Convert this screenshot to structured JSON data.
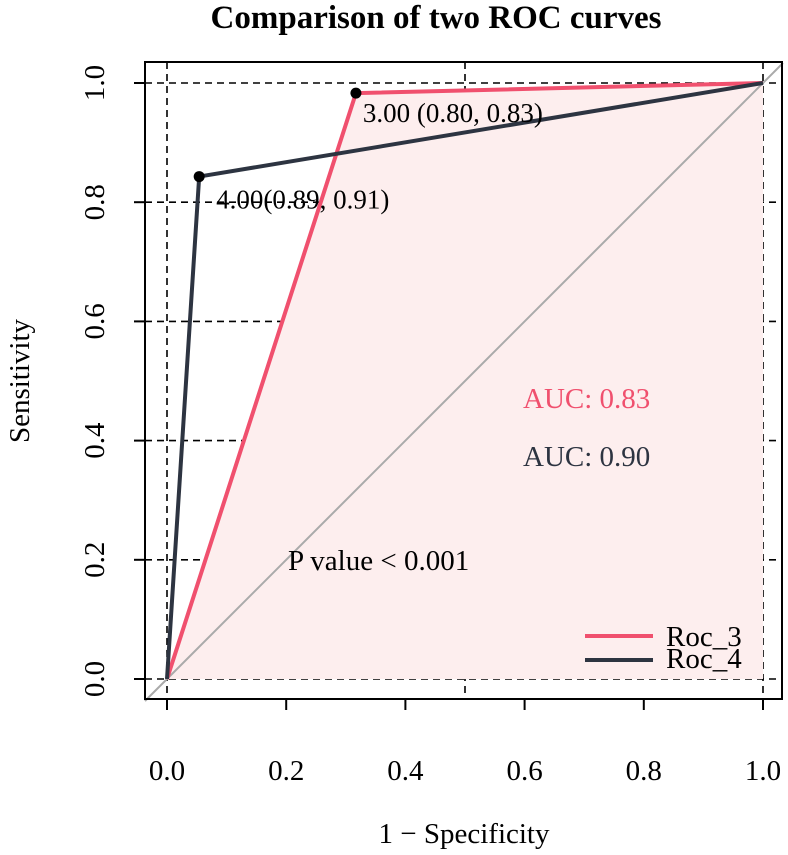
{
  "chart_data": {
    "type": "line",
    "title": "Comparison of two ROC curves",
    "xlabel": "1 − Specificity",
    "ylabel": "Sensitivity",
    "xlim": [
      0,
      1
    ],
    "ylim": [
      0,
      1
    ],
    "x_ticks": [
      "0.0",
      "0.2",
      "0.4",
      "0.6",
      "0.8",
      "1.0"
    ],
    "y_ticks": [
      "0.0",
      "0.2",
      "0.4",
      "0.6",
      "0.8",
      "1.0"
    ],
    "x_tick_values": [
      0,
      0.2,
      0.4,
      0.6,
      0.8,
      1.0
    ],
    "y_tick_values": [
      0,
      0.2,
      0.4,
      0.6,
      0.8,
      1.0
    ],
    "grid": true,
    "series": [
      {
        "name": "Roc_3",
        "color": "#f0506e",
        "fill": "#fdeeee",
        "x": [
          0,
          0.317,
          1.0
        ],
        "y": [
          0,
          0.983,
          1.0
        ],
        "threshold": {
          "x": 0.317,
          "y": 0.983,
          "label": "3.00 (0.80, 0.83)"
        },
        "auc_label": "AUC: 0.83"
      },
      {
        "name": "Roc_4",
        "color": "#2d3441",
        "x": [
          0,
          0.054,
          1.0
        ],
        "y": [
          0,
          0.843,
          1.0
        ],
        "threshold": {
          "x": 0.054,
          "y": 0.843,
          "label": "4.00(0.89, 0.91)"
        },
        "auc_label": "AUC: 0.90"
      }
    ],
    "reference_line": {
      "color": "#aaaaaa",
      "from": [
        0,
        0
      ],
      "to": [
        1,
        1
      ]
    },
    "annotation": "P value < 0.001",
    "legend": {
      "position": "bottom-right",
      "entries": [
        "Roc_3",
        "Roc_4"
      ]
    }
  }
}
